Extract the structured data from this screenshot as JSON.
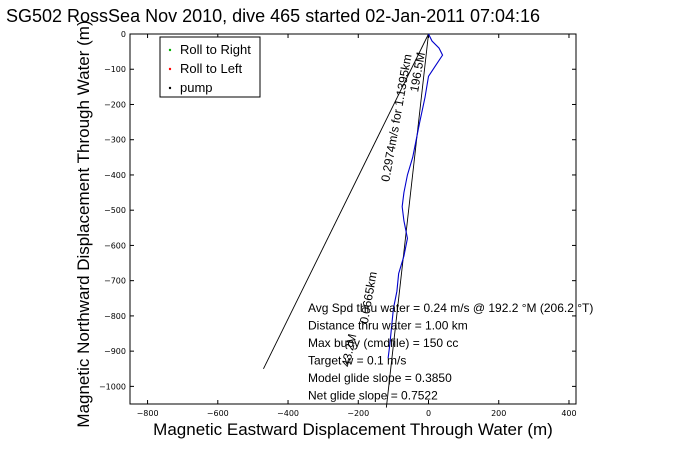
{
  "chart_data": {
    "type": "line",
    "title": "SG502 RossSea Nov 2010, dive 465 started 02-Jan-2011 07:04:16",
    "xlabel": "Magnetic Eastward Displacement Through Water (m)",
    "ylabel": "Magnetic Northward Displacement Through Water (m)",
    "xlim": [
      -850,
      420
    ],
    "ylim": [
      -1050,
      0
    ],
    "xticks": [
      "−800",
      "−600",
      "−400",
      "−200",
      "0",
      "200",
      "400"
    ],
    "yticks": [
      "0",
      "−100",
      "−200",
      "−300",
      "−400",
      "−500",
      "−600",
      "−700",
      "−800",
      "−900",
      "−1000"
    ],
    "xtick_values": [
      -800,
      -600,
      -400,
      -200,
      0,
      200,
      400
    ],
    "ytick_values": [
      0,
      -100,
      -200,
      -300,
      -400,
      -500,
      -600,
      -700,
      -800,
      -900,
      -1000
    ],
    "legend_position": "top-left",
    "legend": [
      {
        "label": "Roll to Right",
        "color": "#00b000"
      },
      {
        "label": "Roll to Left",
        "color": "#ff0000"
      },
      {
        "label": "pump",
        "color": "#000000"
      }
    ],
    "series": [
      {
        "type": "track",
        "color": "#0000cc",
        "x": [
          0,
          10,
          30,
          40,
          20,
          0,
          -10,
          -25,
          -35,
          -45,
          -60,
          -70,
          -75,
          -70,
          -60,
          -70,
          -85,
          -90,
          -100,
          -105,
          -110,
          -115
        ],
        "y": [
          0,
          -20,
          -40,
          -60,
          -90,
          -120,
          -180,
          -250,
          -300,
          -350,
          -400,
          -450,
          -490,
          -530,
          -580,
          -630,
          -680,
          -730,
          -780,
          -830,
          -880,
          -920
        ]
      }
    ],
    "lines": [
      {
        "x": [
          0,
          -470
        ],
        "y": [
          0,
          -950
        ],
        "color": "#000000"
      },
      {
        "x": [
          0,
          -120
        ],
        "y": [
          0,
          -1060
        ],
        "color": "#000000"
      }
    ],
    "rotated_labels": [
      {
        "text": "0.2974m/s for 1.1395km",
        "x": -80,
        "y": -240,
        "angle": -80
      },
      {
        "text": "196.5M",
        "x": -20,
        "y": -110,
        "angle": -80
      },
      {
        "text": "0.0665km",
        "x": -160,
        "y": -750,
        "angle": -80
      },
      {
        "text": "43.2M",
        "x": -215,
        "y": -900,
        "angle": -78
      }
    ],
    "annotations": [
      "Avg Spd thru water = 0.24 m/s @ 192.2  °M (206.2 °T)",
      "Distance thru water = 1.00 km",
      "Max buoy (cmdfile) = 150 cc",
      "Target w = 0.1 m/s",
      "Model glide slope = 0.3850",
      "Net glide slope = 0.7522"
    ]
  }
}
